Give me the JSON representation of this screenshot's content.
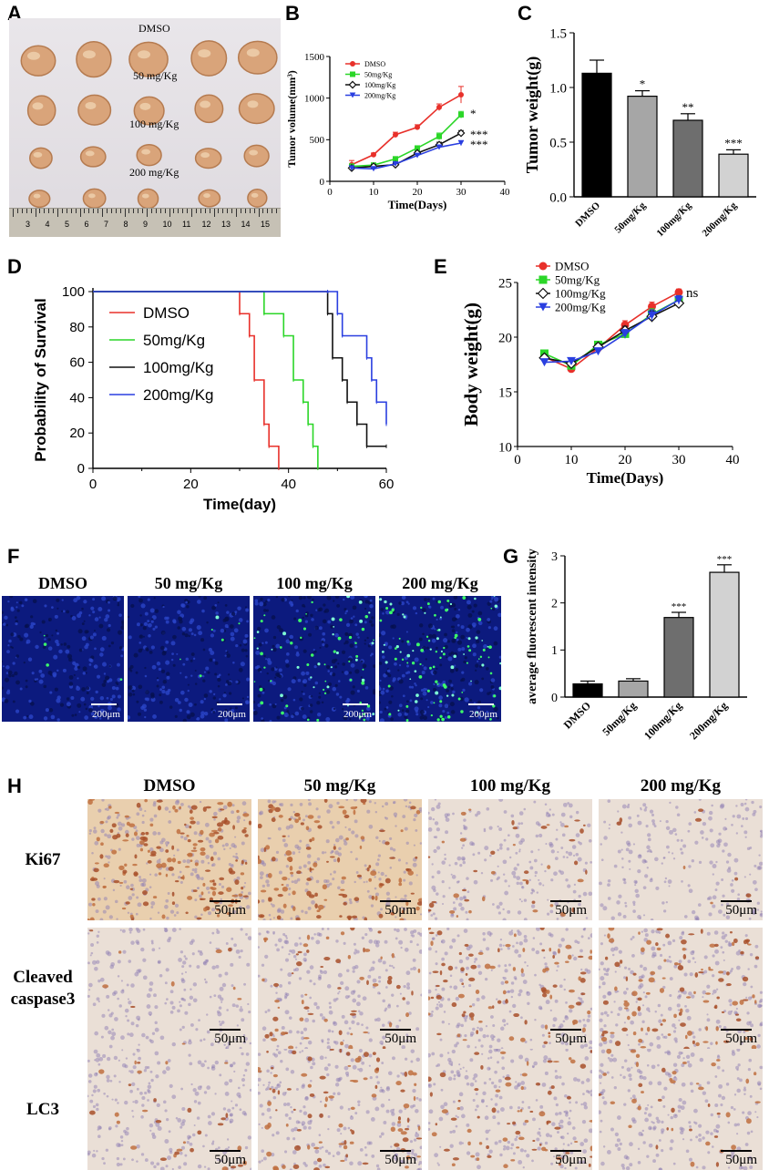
{
  "panel_labels": {
    "A": "A",
    "B": "B",
    "C": "C",
    "D": "D",
    "E": "E",
    "F": "F",
    "G": "G",
    "H": "H"
  },
  "panelA": {
    "row_labels": [
      "DMSO",
      "50 mg/Kg",
      "100 mg/Kg",
      "200 mg/Kg"
    ],
    "ruler_numbers": [
      "3",
      "4",
      "5",
      "6",
      "7",
      "8",
      "9",
      "10",
      "11",
      "12",
      "13",
      "14",
      "15"
    ]
  },
  "panelF": {
    "titles": [
      "DMSO",
      "50 mg/Kg",
      "100 mg/Kg",
      "200 mg/Kg"
    ],
    "scale_label": "200μm"
  },
  "panelH": {
    "col_titles": [
      "DMSO",
      "50 mg/Kg",
      "100 mg/Kg",
      "200 mg/Kg"
    ],
    "row_titles": [
      [
        "Ki67"
      ],
      [
        "Cleaved",
        "caspase3"
      ],
      [
        "LC3"
      ]
    ],
    "scale_label": "50μm"
  },
  "colors": {
    "dmso": "#e8302a",
    "g50": "#2bd628",
    "g100": "#111111",
    "g200": "#2a3fe0",
    "tissue_blue": "#0f1f8c",
    "ihc_brown": "#a8582c"
  },
  "chart_data": [
    {
      "id": "B",
      "type": "line",
      "title": "",
      "xlabel": "Time(Days)",
      "ylabel": "Tumor volume(mm³)",
      "xlim": [
        0,
        40
      ],
      "ylim": [
        0,
        1500
      ],
      "xticks": [
        "0",
        "10",
        "20",
        "30",
        "40"
      ],
      "yticks": [
        "0",
        "500",
        "1000",
        "1500"
      ],
      "x": [
        5,
        10,
        15,
        20,
        25,
        30
      ],
      "series": [
        {
          "name": "DMSO",
          "color": "#e8302a",
          "marker": "circle",
          "values": [
            200,
            320,
            560,
            650,
            890,
            1040
          ],
          "err": [
            50,
            20,
            30,
            30,
            40,
            100
          ]
        },
        {
          "name": "50mg/Kg",
          "color": "#2bd628",
          "marker": "square",
          "values": [
            180,
            195,
            270,
            400,
            540,
            800
          ],
          "err": [
            30,
            20,
            25,
            25,
            40,
            40
          ]
        },
        {
          "name": "100mg/Kg",
          "color": "#111111",
          "marker": "diamond",
          "values": [
            160,
            180,
            200,
            340,
            440,
            580
          ],
          "err": [
            25,
            20,
            20,
            20,
            30,
            30
          ]
        },
        {
          "name": "200mg/Kg",
          "color": "#2a3fe0",
          "marker": "triangle-down",
          "values": [
            160,
            150,
            210,
            310,
            410,
            460
          ],
          "err": [
            25,
            20,
            20,
            20,
            25,
            30
          ]
        }
      ],
      "significance": [
        "*",
        "***",
        "***"
      ],
      "legend_position": "top-left"
    },
    {
      "id": "C",
      "type": "bar",
      "title": "",
      "xlabel": "",
      "ylabel": "Tumor weight(g)",
      "ylim": [
        0,
        1.5
      ],
      "yticks": [
        "0.0",
        "0.5",
        "1.0",
        "1.5"
      ],
      "categories": [
        "DMSO",
        "50mg/Kg",
        "100mg/Kg",
        "200mg/Kg"
      ],
      "values": [
        1.13,
        0.92,
        0.7,
        0.39
      ],
      "err": [
        0.12,
        0.05,
        0.06,
        0.04
      ],
      "bar_colors": [
        "#000000",
        "#a6a6a6",
        "#6e6e6e",
        "#d2d2d2"
      ],
      "significance": [
        "",
        "*",
        "**",
        "***"
      ]
    },
    {
      "id": "D",
      "type": "line",
      "title": "",
      "xlabel": "Time(day)",
      "ylabel": "Probability of Survival",
      "xlim": [
        0,
        60
      ],
      "ylim": [
        0,
        100
      ],
      "xticks": [
        "0",
        "20",
        "40",
        "60"
      ],
      "yticks": [
        "0",
        "20",
        "40",
        "60",
        "80",
        "100"
      ],
      "series": [
        {
          "name": "DMSO",
          "color": "#e8302a",
          "steps": [
            [
              0,
              100
            ],
            [
              30,
              87.5
            ],
            [
              32,
              75
            ],
            [
              33,
              50
            ],
            [
              35,
              25
            ],
            [
              36,
              12.5
            ],
            [
              38,
              0
            ]
          ]
        },
        {
          "name": "50mg/Kg",
          "color": "#2bd628",
          "steps": [
            [
              0,
              100
            ],
            [
              35,
              87.5
            ],
            [
              39,
              75
            ],
            [
              41,
              50
            ],
            [
              43,
              37.5
            ],
            [
              44,
              25
            ],
            [
              45,
              12.5
            ],
            [
              46,
              0
            ]
          ]
        },
        {
          "name": "100mg/Kg",
          "color": "#111111",
          "steps": [
            [
              0,
              100
            ],
            [
              48,
              87.5
            ],
            [
              49,
              62.5
            ],
            [
              51,
              50
            ],
            [
              52,
              37.5
            ],
            [
              54,
              25
            ],
            [
              56,
              12.5
            ],
            [
              60,
              12.5
            ]
          ]
        },
        {
          "name": "200mg/Kg",
          "color": "#2a3fe0",
          "steps": [
            [
              0,
              100
            ],
            [
              48,
              100
            ],
            [
              50,
              87.5
            ],
            [
              51,
              75
            ],
            [
              56,
              62.5
            ],
            [
              57,
              50
            ],
            [
              58,
              37.5
            ],
            [
              60,
              25
            ]
          ]
        }
      ],
      "legend_position": "center"
    },
    {
      "id": "E",
      "type": "line",
      "title": "",
      "xlabel": "Time(Days)",
      "ylabel": "Body weight(g)",
      "xlim": [
        0,
        40
      ],
      "ylim": [
        10,
        25
      ],
      "xticks": [
        "0",
        "10",
        "20",
        "30",
        "40"
      ],
      "yticks": [
        "10",
        "15",
        "20",
        "25"
      ],
      "x": [
        5,
        10,
        15,
        20,
        25,
        30
      ],
      "series": [
        {
          "name": "DMSO",
          "color": "#e8302a",
          "marker": "circle",
          "values": [
            18.2,
            17.1,
            19.0,
            21.1,
            22.8,
            24.1
          ],
          "err": [
            0.3,
            0.2,
            0.3,
            0.4,
            0.4,
            0.3
          ]
        },
        {
          "name": "50mg/Kg",
          "color": "#2bd628",
          "marker": "square",
          "values": [
            18.5,
            17.4,
            19.3,
            20.3,
            22.1,
            23.4
          ],
          "err": [
            0.3,
            0.3,
            0.3,
            0.4,
            0.5,
            0.4
          ]
        },
        {
          "name": "100mg/Kg",
          "color": "#111111",
          "marker": "diamond",
          "values": [
            18.1,
            17.6,
            19.1,
            20.6,
            21.9,
            23.1
          ],
          "err": [
            0.3,
            0.3,
            0.3,
            0.4,
            0.5,
            0.4
          ]
        },
        {
          "name": "200mg/Kg",
          "color": "#2a3fe0",
          "marker": "triangle-down",
          "values": [
            17.7,
            17.8,
            18.7,
            20.3,
            22.0,
            23.4
          ],
          "err": [
            0.3,
            0.3,
            0.3,
            0.4,
            0.5,
            0.4
          ]
        }
      ],
      "annotation": "ns",
      "legend_position": "top-left"
    },
    {
      "id": "G",
      "type": "bar",
      "title": "",
      "xlabel": "",
      "ylabel": "average fluorescent intensity",
      "ylim": [
        0,
        3
      ],
      "yticks": [
        "0",
        "1",
        "2",
        "3"
      ],
      "categories": [
        "DMSO",
        "50mg/Kg",
        "100mg/Kg",
        "200mg/Kg"
      ],
      "values": [
        0.28,
        0.34,
        1.69,
        2.65
      ],
      "err": [
        0.06,
        0.05,
        0.11,
        0.16
      ],
      "bar_colors": [
        "#000000",
        "#a6a6a6",
        "#6e6e6e",
        "#d2d2d2"
      ],
      "significance": [
        "",
        "",
        "***",
        "***"
      ]
    }
  ]
}
